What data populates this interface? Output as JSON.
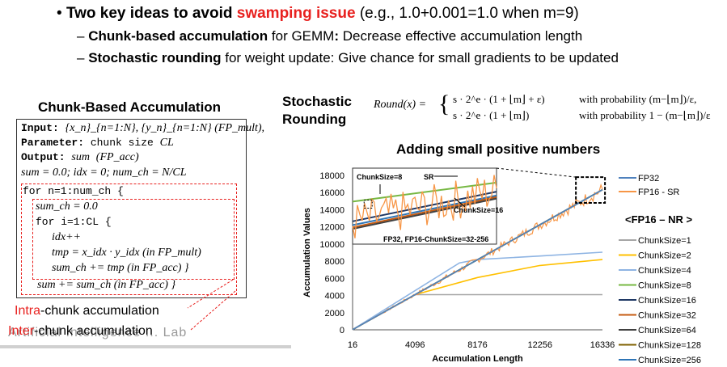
{
  "bullets": {
    "main_prefix": "Two key ideas to avoid ",
    "main_highlight": "swamping issue",
    "main_suffix": " (e.g., 1.0+0.001=1.0 when m=9)",
    "sub1_bold": "Chunk-based accumulation",
    "sub1_mid": " for GEMM",
    "sub1_colon": ":",
    "sub1_rest": " Decrease effective accumulation length",
    "sub2_bold": "Stochastic rounding",
    "sub2_rest": " for weight update: Give chance for small gradients to be updated"
  },
  "algorithm": {
    "title": "Chunk-Based Accumulation",
    "lines": {
      "input_kw": "Input:",
      "input_expr": "{x_n}_{n=1:N}, {y_n}_{n=1:N} (FP_mult),",
      "param_kw": "Parameter:",
      "param_text": "chunk size",
      "param_var": "CL",
      "output_kw": "Output:",
      "output_var": "sum",
      "output_fp": "(FP_acc)",
      "init": "sum = 0.0; idx = 0; num_ch = N/CL",
      "for_outer": "for n=1:num_ch {",
      "sum_ch_init": "sum_ch = 0.0",
      "for_inner": "for i=1:CL {",
      "idx_inc": "idx++",
      "tmp_line": "tmp = x_idx · y_idx  (in FP_mult)",
      "sum_ch_acc": "sum_ch += tmp  (in FP_acc) }",
      "sum_acc": "sum += sum_ch  (in FP_acc) }"
    },
    "intra_highlight": "Intra",
    "intra_rest": "-chunk accumulation",
    "inter_highlight": "Inter",
    "inter_rest": "-chunk accumulation",
    "ghost_text": "Artificial Intelligence ... Lab"
  },
  "stochastic": {
    "title_line1": "Stochastic",
    "title_line2": "Rounding",
    "lhs": "Round(x) =",
    "case1": "s · 2^e · (1 + ⌊m⌋ + ε)",
    "case1_cond": "with probability (m−⌊m⌋)/ε,",
    "case2": "s · 2^e · (1 + ⌊m⌋)",
    "case2_cond": "with probability 1 − (m−⌊m⌋)/ε"
  },
  "chart_data": {
    "type": "line",
    "title": "Adding small positive numbers",
    "xlabel": "Accumulation Length",
    "ylabel": "Accumulation Values",
    "x_ticks": [
      "16",
      "4096",
      "8176",
      "12256",
      "16336"
    ],
    "y_ticks": [
      "0",
      "2000",
      "4000",
      "6000",
      "8000",
      "10000",
      "12000",
      "14000",
      "16000",
      "18000"
    ],
    "xlim": [
      16,
      16336
    ],
    "ylim": [
      0,
      18000
    ],
    "series": [
      {
        "name": "FP32",
        "color": "#4f81bd",
        "points": [
          [
            16,
            16
          ],
          [
            16336,
            16336
          ]
        ]
      },
      {
        "name": "FP16 - SR",
        "color": "#f79646",
        "points": [
          [
            16,
            16
          ],
          [
            16336,
            16400
          ]
        ],
        "noisy": true
      },
      {
        "name": "ChunkSize=1",
        "color": "#a6a6a6",
        "points": [
          [
            16,
            16
          ],
          [
            4096,
            4096
          ],
          [
            16336,
            4096
          ]
        ]
      },
      {
        "name": "ChunkSize=2",
        "color": "#ffc000",
        "points": [
          [
            16,
            16
          ],
          [
            4096,
            4096
          ],
          [
            8176,
            6100
          ],
          [
            12256,
            7500
          ],
          [
            16336,
            8192
          ]
        ]
      },
      {
        "name": "ChunkSize=4",
        "color": "#8eb4e3",
        "points": [
          [
            16,
            16
          ],
          [
            7000,
            7800
          ],
          [
            8176,
            8192
          ],
          [
            12256,
            8600
          ],
          [
            16336,
            9050
          ]
        ]
      },
      {
        "name": "ChunkSize=8",
        "color": "#77b843",
        "points": [
          [
            16,
            16
          ],
          [
            16336,
            16336
          ]
        ]
      },
      {
        "name": "ChunkSize=16",
        "color": "#1f3864",
        "points": [
          [
            16,
            16
          ],
          [
            16336,
            16336
          ]
        ]
      },
      {
        "name": "ChunkSize=32",
        "color": "#c55a11",
        "points": [
          [
            16,
            16
          ],
          [
            16336,
            16336
          ]
        ]
      },
      {
        "name": "ChunkSize=64",
        "color": "#404040",
        "points": [
          [
            16,
            16
          ],
          [
            16336,
            16336
          ]
        ]
      },
      {
        "name": "ChunkSize=128",
        "color": "#7f6000",
        "points": [
          [
            16,
            16
          ],
          [
            16336,
            16336
          ]
        ]
      },
      {
        "name": "ChunkSize=256",
        "color": "#2e75b6",
        "points": [
          [
            16,
            16
          ],
          [
            16336,
            16336
          ]
        ]
      }
    ],
    "legend_header": "<FP16 – NR >",
    "inset_labels": {
      "chunk8": "ChunkSize=8",
      "sr": "SR",
      "chunk16": "ChunkSize=16",
      "fp32": "FP32, FP16-ChunkSize=32-256"
    }
  }
}
